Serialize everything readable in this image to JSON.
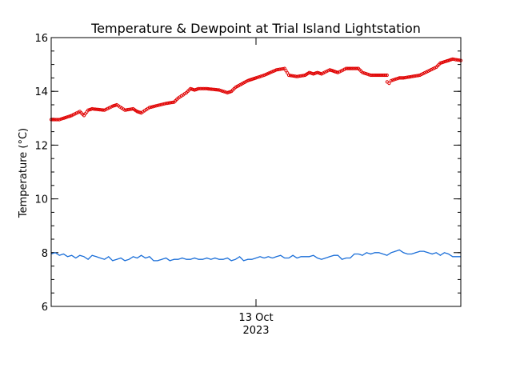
{
  "chart_data": {
    "type": "line",
    "title": "Temperature & Dewpoint at Trial Island Lightstation",
    "ylabel": "Temperature (°C)",
    "xlabel": "",
    "x_tick_labels": [
      {
        "line1": "13 Oct",
        "line2": "2023",
        "x": 0.5
      }
    ],
    "xlim": [
      0,
      1
    ],
    "ylim": [
      6,
      16
    ],
    "y_major_ticks": [
      6,
      8,
      10,
      12,
      14,
      16
    ],
    "y_minor_step": 0.5,
    "grid": false,
    "series": [
      {
        "key": "temperature",
        "style": "dots",
        "color": "#e00000",
        "x": [
          0.0,
          0.02,
          0.05,
          0.07,
          0.08,
          0.09,
          0.1,
          0.13,
          0.15,
          0.16,
          0.18,
          0.2,
          0.21,
          0.22,
          0.24,
          0.28,
          0.3,
          0.31,
          0.33,
          0.34,
          0.35,
          0.36,
          0.38,
          0.41,
          0.43,
          0.44,
          0.45,
          0.48,
          0.49,
          0.5,
          0.52,
          0.55,
          0.57,
          0.58,
          0.6,
          0.62,
          0.63,
          0.64,
          0.65,
          0.66,
          0.68,
          0.69,
          0.7,
          0.72,
          0.75,
          0.76,
          0.78,
          0.81,
          0.82,
          0.8201,
          0.825,
          0.83,
          0.85,
          0.86,
          0.88,
          0.9,
          0.92,
          0.94,
          0.95,
          0.96,
          0.97,
          0.98,
          1.0
        ],
        "y": [
          12.95,
          12.95,
          13.1,
          13.25,
          13.1,
          13.3,
          13.35,
          13.3,
          13.45,
          13.5,
          13.3,
          13.35,
          13.25,
          13.2,
          13.4,
          13.55,
          13.6,
          13.75,
          13.95,
          14.1,
          14.05,
          14.1,
          14.1,
          14.05,
          13.95,
          14.0,
          14.15,
          14.4,
          14.45,
          14.5,
          14.6,
          14.8,
          14.85,
          14.6,
          14.55,
          14.6,
          14.7,
          14.65,
          14.7,
          14.65,
          14.8,
          14.75,
          14.7,
          14.85,
          14.85,
          14.7,
          14.6,
          14.6,
          14.6,
          14.35,
          14.3,
          14.4,
          14.5,
          14.5,
          14.55,
          14.6,
          14.75,
          14.9,
          15.05,
          15.1,
          15.15,
          15.2,
          15.15
        ]
      },
      {
        "key": "dewpoint",
        "style": "line",
        "color": "#1a6ed8",
        "x": [
          0.0,
          0.01,
          0.02,
          0.03,
          0.04,
          0.05,
          0.06,
          0.07,
          0.08,
          0.09,
          0.1,
          0.11,
          0.12,
          0.13,
          0.14,
          0.15,
          0.16,
          0.17,
          0.18,
          0.19,
          0.2,
          0.21,
          0.22,
          0.23,
          0.24,
          0.25,
          0.26,
          0.27,
          0.28,
          0.29,
          0.3,
          0.31,
          0.32,
          0.33,
          0.34,
          0.35,
          0.36,
          0.37,
          0.38,
          0.39,
          0.4,
          0.41,
          0.42,
          0.43,
          0.44,
          0.45,
          0.46,
          0.47,
          0.48,
          0.49,
          0.5,
          0.51,
          0.52,
          0.53,
          0.54,
          0.55,
          0.56,
          0.57,
          0.58,
          0.59,
          0.6,
          0.61,
          0.62,
          0.63,
          0.64,
          0.65,
          0.66,
          0.67,
          0.68,
          0.69,
          0.7,
          0.71,
          0.72,
          0.73,
          0.74,
          0.75,
          0.76,
          0.77,
          0.78,
          0.79,
          0.8,
          0.81,
          0.82,
          0.83,
          0.84,
          0.85,
          0.86,
          0.87,
          0.88,
          0.89,
          0.9,
          0.91,
          0.92,
          0.93,
          0.94,
          0.95,
          0.96,
          0.97,
          0.98,
          0.99,
          1.0
        ],
        "y": [
          7.95,
          8.0,
          7.9,
          7.95,
          7.85,
          7.9,
          7.8,
          7.9,
          7.85,
          7.75,
          7.9,
          7.85,
          7.8,
          7.75,
          7.85,
          7.7,
          7.75,
          7.8,
          7.7,
          7.75,
          7.85,
          7.8,
          7.9,
          7.8,
          7.85,
          7.7,
          7.7,
          7.75,
          7.8,
          7.7,
          7.75,
          7.75,
          7.8,
          7.75,
          7.75,
          7.8,
          7.75,
          7.75,
          7.8,
          7.75,
          7.8,
          7.75,
          7.75,
          7.8,
          7.7,
          7.75,
          7.85,
          7.7,
          7.75,
          7.75,
          7.8,
          7.85,
          7.8,
          7.85,
          7.8,
          7.85,
          7.9,
          7.8,
          7.8,
          7.9,
          7.8,
          7.85,
          7.85,
          7.85,
          7.9,
          7.8,
          7.75,
          7.8,
          7.85,
          7.9,
          7.9,
          7.75,
          7.8,
          7.8,
          7.95,
          7.95,
          7.9,
          8.0,
          7.95,
          8.0,
          8.0,
          7.95,
          7.9,
          8.0,
          8.05,
          8.1,
          8.0,
          7.95,
          7.95,
          8.0,
          8.05,
          8.05,
          8.0,
          7.95,
          8.0,
          7.9,
          8.0,
          7.95,
          7.85,
          7.85,
          7.85
        ]
      }
    ]
  }
}
